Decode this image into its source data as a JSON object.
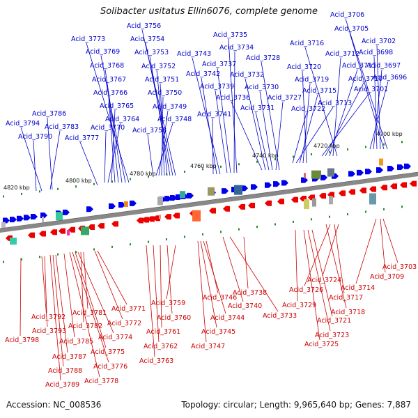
{
  "title": "Solibacter usitatus Ellin6076, complete genome",
  "footer": {
    "accession": "Accession: NC_008536",
    "summary": "Topology: circular; Length: 9,965,640 bp; Genes: 7,887"
  },
  "colors": {
    "forward": "#0000ee",
    "reverse": "#ee0000",
    "label_top": "#0000cc",
    "label_bottom": "#cc0000",
    "backbone": "#888888",
    "tick": "#228822"
  },
  "kbp_marks": [
    "4700 kbp",
    "4720 kbp",
    "4740 kbp",
    "4760 kbp",
    "4780 kbp",
    "4800 kbp",
    "4820 kbp"
  ],
  "genes_top": [
    "Acid_3706",
    "Acid_3705",
    "Acid_3702",
    "Acid_3698",
    "Acid_3697",
    "Acid_3696",
    "Acid_3716",
    "Acid_3712",
    "Acid_3711",
    "Acid_3710",
    "Acid_3701",
    "Acid_3720",
    "Acid_3719",
    "Acid_3715",
    "Acid_3713",
    "Acid_3722",
    "Acid_3728",
    "Acid_3727",
    "Acid_3730",
    "Acid_3731",
    "Acid_3732",
    "Acid_3736",
    "Acid_3735",
    "Acid_3734",
    "Acid_3737",
    "Acid_3739",
    "Acid_3743",
    "Acid_3742",
    "Acid_3741",
    "Acid_3756",
    "Acid_3754",
    "Acid_3753",
    "Acid_3752",
    "Acid_3751",
    "Acid_3750",
    "Acid_3749",
    "Acid_3748",
    "Acid_3758",
    "Acid_3773",
    "Acid_3769",
    "Acid_3768",
    "Acid_3767",
    "Acid_3766",
    "Acid_3765",
    "Acid_3764",
    "Acid_3770",
    "Acid_3786",
    "Acid_3794",
    "Acid_3783",
    "Acid_3790",
    "Acid_3777"
  ],
  "genes_bottom": [
    "Acid_3703",
    "Acid_3709",
    "Acid_3714",
    "Acid_3724",
    "Acid_3717",
    "Acid_3726",
    "Acid_3718",
    "Acid_3729",
    "Acid_3721",
    "Acid_3723",
    "Acid_3725",
    "Acid_3738",
    "Acid_3733",
    "Acid_3740",
    "Acid_3746",
    "Acid_3744",
    "Acid_3745",
    "Acid_3747",
    "Acid_3759",
    "Acid_3760",
    "Acid_3761",
    "Acid_3762",
    "Acid_3763",
    "Acid_3771",
    "Acid_3772",
    "Acid_3781",
    "Acid_3782",
    "Acid_3774",
    "Acid_3775",
    "Acid_3776",
    "Acid_3778",
    "Acid_3785",
    "Acid_3792",
    "Acid_3793",
    "Acid_3787",
    "Acid_3788",
    "Acid_3789",
    "Acid_3798"
  ]
}
